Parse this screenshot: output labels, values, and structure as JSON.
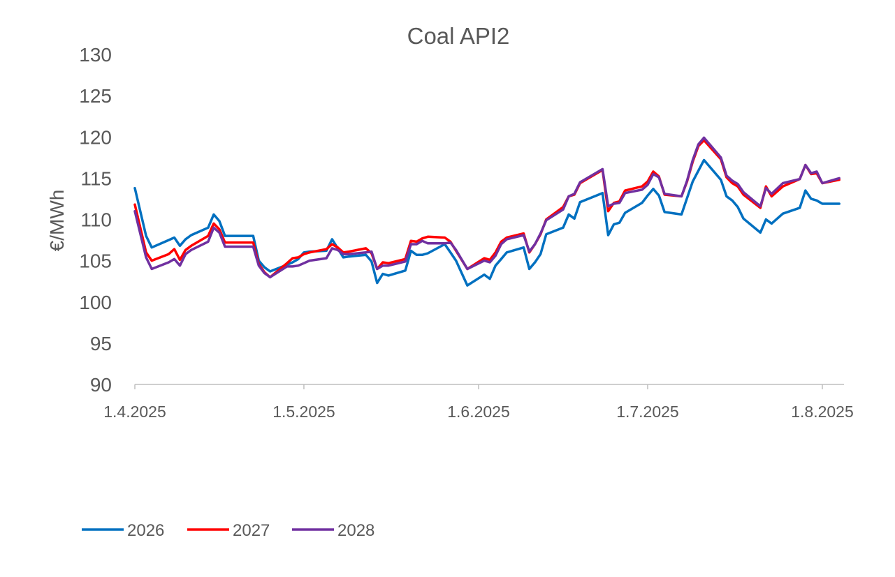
{
  "chart_data": {
    "type": "line",
    "title": "Coal API2",
    "xlabel": "",
    "ylabel": "€/MWh",
    "ylim": [
      90,
      130
    ],
    "yticks": [
      90,
      95,
      100,
      105,
      110,
      115,
      120,
      125,
      130
    ],
    "xlim": [
      "2025-04-01",
      "2025-08-04"
    ],
    "xticks": [
      {
        "date": "2025-04-01",
        "label": "1.4.2025"
      },
      {
        "date": "2025-05-01",
        "label": "1.5.2025"
      },
      {
        "date": "2025-06-01",
        "label": "1.6.2025"
      },
      {
        "date": "2025-07-01",
        "label": "1.7.2025"
      },
      {
        "date": "2025-08-01",
        "label": "1.8.2025"
      }
    ],
    "grid": false,
    "legend_position": "bottom-left",
    "series": [
      {
        "name": "2026",
        "color": "#0070C0",
        "points": [
          [
            "2025-04-01",
            113.8
          ],
          [
            "2025-04-03",
            108.0
          ],
          [
            "2025-04-04",
            106.6
          ],
          [
            "2025-04-07",
            107.5
          ],
          [
            "2025-04-08",
            107.8
          ],
          [
            "2025-04-09",
            106.8
          ],
          [
            "2025-04-10",
            107.6
          ],
          [
            "2025-04-11",
            108.1
          ],
          [
            "2025-04-14",
            109.0
          ],
          [
            "2025-04-15",
            110.6
          ],
          [
            "2025-04-16",
            109.8
          ],
          [
            "2025-04-17",
            108.0
          ],
          [
            "2025-04-22",
            108.0
          ],
          [
            "2025-04-23",
            105.0
          ],
          [
            "2025-04-24",
            104.2
          ],
          [
            "2025-04-25",
            103.7
          ],
          [
            "2025-04-28",
            104.5
          ],
          [
            "2025-04-29",
            104.8
          ],
          [
            "2025-04-30",
            105.2
          ],
          [
            "2025-05-01",
            106.0
          ],
          [
            "2025-05-02",
            106.1
          ],
          [
            "2025-05-05",
            106.2
          ],
          [
            "2025-05-06",
            107.6
          ],
          [
            "2025-05-07",
            106.5
          ],
          [
            "2025-05-08",
            105.4
          ],
          [
            "2025-05-09",
            105.5
          ],
          [
            "2025-05-12",
            105.7
          ],
          [
            "2025-05-13",
            104.9
          ],
          [
            "2025-05-14",
            102.3
          ],
          [
            "2025-05-15",
            103.4
          ],
          [
            "2025-05-16",
            103.2
          ],
          [
            "2025-05-19",
            103.8
          ],
          [
            "2025-05-20",
            106.2
          ],
          [
            "2025-05-21",
            105.7
          ],
          [
            "2025-05-22",
            105.7
          ],
          [
            "2025-05-23",
            105.9
          ],
          [
            "2025-05-26",
            107.0
          ],
          [
            "2025-05-27",
            106.0
          ],
          [
            "2025-05-28",
            105.0
          ],
          [
            "2025-05-30",
            102.0
          ],
          [
            "2025-06-02",
            103.3
          ],
          [
            "2025-06-03",
            102.8
          ],
          [
            "2025-06-04",
            104.4
          ],
          [
            "2025-06-05",
            105.2
          ],
          [
            "2025-06-06",
            106.0
          ],
          [
            "2025-06-09",
            106.6
          ],
          [
            "2025-06-10",
            104.0
          ],
          [
            "2025-06-11",
            104.8
          ],
          [
            "2025-06-12",
            105.8
          ],
          [
            "2025-06-13",
            108.2
          ],
          [
            "2025-06-16",
            109.0
          ],
          [
            "2025-06-17",
            110.6
          ],
          [
            "2025-06-18",
            110.1
          ],
          [
            "2025-06-19",
            112.1
          ],
          [
            "2025-06-23",
            113.2
          ],
          [
            "2025-06-24",
            108.1
          ],
          [
            "2025-06-25",
            109.4
          ],
          [
            "2025-06-26",
            109.6
          ],
          [
            "2025-06-27",
            110.8
          ],
          [
            "2025-06-30",
            112.0
          ],
          [
            "2025-07-01",
            112.9
          ],
          [
            "2025-07-02",
            113.7
          ],
          [
            "2025-07-03",
            112.9
          ],
          [
            "2025-07-04",
            110.9
          ],
          [
            "2025-07-07",
            110.6
          ],
          [
            "2025-07-08",
            112.6
          ],
          [
            "2025-07-09",
            114.6
          ],
          [
            "2025-07-10",
            115.9
          ],
          [
            "2025-07-11",
            117.2
          ],
          [
            "2025-07-14",
            114.8
          ],
          [
            "2025-07-15",
            112.8
          ],
          [
            "2025-07-16",
            112.3
          ],
          [
            "2025-07-17",
            111.5
          ],
          [
            "2025-07-18",
            110.1
          ],
          [
            "2025-07-21",
            108.4
          ],
          [
            "2025-07-22",
            110.0
          ],
          [
            "2025-07-23",
            109.5
          ],
          [
            "2025-07-25",
            110.7
          ],
          [
            "2025-07-28",
            111.4
          ],
          [
            "2025-07-29",
            113.5
          ],
          [
            "2025-07-30",
            112.5
          ],
          [
            "2025-07-31",
            112.3
          ],
          [
            "2025-08-01",
            111.9
          ],
          [
            "2025-08-04",
            111.9
          ]
        ]
      },
      {
        "name": "2027",
        "color": "#FF0000",
        "points": [
          [
            "2025-04-01",
            111.8
          ],
          [
            "2025-04-03",
            106.0
          ],
          [
            "2025-04-04",
            105.0
          ],
          [
            "2025-04-07",
            105.8
          ],
          [
            "2025-04-08",
            106.4
          ],
          [
            "2025-04-09",
            105.1
          ],
          [
            "2025-04-10",
            106.3
          ],
          [
            "2025-04-11",
            106.8
          ],
          [
            "2025-04-14",
            108.0
          ],
          [
            "2025-04-15",
            109.5
          ],
          [
            "2025-04-16",
            108.8
          ],
          [
            "2025-04-17",
            107.2
          ],
          [
            "2025-04-22",
            107.2
          ],
          [
            "2025-04-23",
            104.6
          ],
          [
            "2025-04-24",
            103.6
          ],
          [
            "2025-04-25",
            103.0
          ],
          [
            "2025-04-28",
            104.7
          ],
          [
            "2025-04-29",
            105.3
          ],
          [
            "2025-04-30",
            105.4
          ],
          [
            "2025-05-01",
            105.8
          ],
          [
            "2025-05-02",
            106.0
          ],
          [
            "2025-05-05",
            106.4
          ],
          [
            "2025-05-06",
            107.0
          ],
          [
            "2025-05-07",
            106.6
          ],
          [
            "2025-05-08",
            106.0
          ],
          [
            "2025-05-09",
            106.1
          ],
          [
            "2025-05-12",
            106.5
          ],
          [
            "2025-05-13",
            105.9
          ],
          [
            "2025-05-14",
            104.0
          ],
          [
            "2025-05-15",
            104.8
          ],
          [
            "2025-05-16",
            104.7
          ],
          [
            "2025-05-19",
            105.2
          ],
          [
            "2025-05-20",
            107.4
          ],
          [
            "2025-05-21",
            107.3
          ],
          [
            "2025-05-22",
            107.7
          ],
          [
            "2025-05-23",
            107.9
          ],
          [
            "2025-05-26",
            107.8
          ],
          [
            "2025-05-27",
            107.3
          ],
          [
            "2025-05-28",
            106.2
          ],
          [
            "2025-05-30",
            104.0
          ],
          [
            "2025-06-02",
            105.3
          ],
          [
            "2025-06-03",
            105.1
          ],
          [
            "2025-06-04",
            106.0
          ],
          [
            "2025-06-05",
            107.3
          ],
          [
            "2025-06-06",
            107.8
          ],
          [
            "2025-06-09",
            108.3
          ],
          [
            "2025-06-10",
            106.0
          ],
          [
            "2025-06-11",
            107.0
          ],
          [
            "2025-06-12",
            108.2
          ],
          [
            "2025-06-13",
            110.0
          ],
          [
            "2025-06-16",
            111.5
          ],
          [
            "2025-06-17",
            112.8
          ],
          [
            "2025-06-18",
            113.0
          ],
          [
            "2025-06-19",
            114.4
          ],
          [
            "2025-06-23",
            116.0
          ],
          [
            "2025-06-24",
            111.0
          ],
          [
            "2025-06-25",
            112.0
          ],
          [
            "2025-06-26",
            112.2
          ],
          [
            "2025-06-27",
            113.5
          ],
          [
            "2025-06-30",
            114.0
          ],
          [
            "2025-07-01",
            114.6
          ],
          [
            "2025-07-02",
            115.8
          ],
          [
            "2025-07-03",
            115.2
          ],
          [
            "2025-07-04",
            113.0
          ],
          [
            "2025-07-07",
            112.8
          ],
          [
            "2025-07-08",
            114.6
          ],
          [
            "2025-07-09",
            117.0
          ],
          [
            "2025-07-10",
            118.9
          ],
          [
            "2025-07-11",
            119.6
          ],
          [
            "2025-07-14",
            117.3
          ],
          [
            "2025-07-15",
            115.1
          ],
          [
            "2025-07-16",
            114.4
          ],
          [
            "2025-07-17",
            114.0
          ],
          [
            "2025-07-18",
            113.0
          ],
          [
            "2025-07-21",
            111.4
          ],
          [
            "2025-07-22",
            114.0
          ],
          [
            "2025-07-23",
            112.8
          ],
          [
            "2025-07-25",
            114.0
          ],
          [
            "2025-07-28",
            114.9
          ],
          [
            "2025-07-29",
            116.6
          ],
          [
            "2025-07-30",
            115.5
          ],
          [
            "2025-07-31",
            115.6
          ],
          [
            "2025-08-01",
            114.4
          ],
          [
            "2025-08-04",
            114.8
          ]
        ]
      },
      {
        "name": "2028",
        "color": "#7030A0",
        "points": [
          [
            "2025-04-01",
            111.0
          ],
          [
            "2025-04-03",
            105.4
          ],
          [
            "2025-04-04",
            104.0
          ],
          [
            "2025-04-07",
            104.8
          ],
          [
            "2025-04-08",
            105.2
          ],
          [
            "2025-04-09",
            104.4
          ],
          [
            "2025-04-10",
            105.8
          ],
          [
            "2025-04-11",
            106.3
          ],
          [
            "2025-04-14",
            107.3
          ],
          [
            "2025-04-15",
            109.0
          ],
          [
            "2025-04-16",
            108.4
          ],
          [
            "2025-04-17",
            106.7
          ],
          [
            "2025-04-22",
            106.7
          ],
          [
            "2025-04-23",
            104.4
          ],
          [
            "2025-04-24",
            103.5
          ],
          [
            "2025-04-25",
            103.0
          ],
          [
            "2025-04-28",
            104.3
          ],
          [
            "2025-04-29",
            104.3
          ],
          [
            "2025-04-30",
            104.4
          ],
          [
            "2025-05-01",
            104.7
          ],
          [
            "2025-05-02",
            105.0
          ],
          [
            "2025-05-05",
            105.3
          ],
          [
            "2025-05-06",
            106.5
          ],
          [
            "2025-05-07",
            106.3
          ],
          [
            "2025-05-08",
            105.8
          ],
          [
            "2025-05-09",
            105.8
          ],
          [
            "2025-05-12",
            106.0
          ],
          [
            "2025-05-13",
            106.1
          ],
          [
            "2025-05-14",
            104.0
          ],
          [
            "2025-05-15",
            104.4
          ],
          [
            "2025-05-16",
            104.4
          ],
          [
            "2025-05-19",
            104.9
          ],
          [
            "2025-05-20",
            107.0
          ],
          [
            "2025-05-21",
            107.0
          ],
          [
            "2025-05-22",
            107.4
          ],
          [
            "2025-05-23",
            107.1
          ],
          [
            "2025-05-26",
            107.1
          ],
          [
            "2025-05-27",
            107.2
          ],
          [
            "2025-05-28",
            106.3
          ],
          [
            "2025-05-30",
            104.0
          ],
          [
            "2025-06-02",
            105.0
          ],
          [
            "2025-06-03",
            104.8
          ],
          [
            "2025-06-04",
            105.6
          ],
          [
            "2025-06-05",
            107.0
          ],
          [
            "2025-06-06",
            107.6
          ],
          [
            "2025-06-09",
            108.1
          ],
          [
            "2025-06-10",
            106.1
          ],
          [
            "2025-06-11",
            107.0
          ],
          [
            "2025-06-12",
            108.3
          ],
          [
            "2025-06-13",
            109.9
          ],
          [
            "2025-06-16",
            111.2
          ],
          [
            "2025-06-17",
            112.8
          ],
          [
            "2025-06-18",
            113.1
          ],
          [
            "2025-06-19",
            114.5
          ],
          [
            "2025-06-23",
            116.1
          ],
          [
            "2025-06-24",
            111.6
          ],
          [
            "2025-06-25",
            111.9
          ],
          [
            "2025-06-26",
            112.0
          ],
          [
            "2025-06-27",
            113.2
          ],
          [
            "2025-06-30",
            113.6
          ],
          [
            "2025-07-01",
            114.2
          ],
          [
            "2025-07-02",
            115.5
          ],
          [
            "2025-07-03",
            115.1
          ],
          [
            "2025-07-04",
            113.1
          ],
          [
            "2025-07-07",
            112.8
          ],
          [
            "2025-07-08",
            114.7
          ],
          [
            "2025-07-09",
            117.2
          ],
          [
            "2025-07-10",
            119.1
          ],
          [
            "2025-07-11",
            119.9
          ],
          [
            "2025-07-14",
            117.5
          ],
          [
            "2025-07-15",
            115.3
          ],
          [
            "2025-07-16",
            114.7
          ],
          [
            "2025-07-17",
            114.3
          ],
          [
            "2025-07-18",
            113.3
          ],
          [
            "2025-07-21",
            111.6
          ],
          [
            "2025-07-22",
            113.8
          ],
          [
            "2025-07-23",
            113.1
          ],
          [
            "2025-07-25",
            114.4
          ],
          [
            "2025-07-28",
            114.9
          ],
          [
            "2025-07-29",
            116.6
          ],
          [
            "2025-07-30",
            115.6
          ],
          [
            "2025-07-31",
            115.8
          ],
          [
            "2025-08-01",
            114.4
          ],
          [
            "2025-08-04",
            115.0
          ]
        ]
      }
    ]
  }
}
